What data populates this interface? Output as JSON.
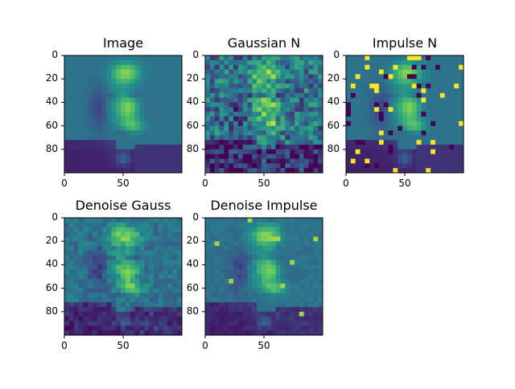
{
  "chart_data": [
    {
      "type": "heatmap",
      "title": "Image",
      "colormap": "viridis",
      "image_shape": [
        100,
        100
      ],
      "xlim": [
        0,
        100
      ],
      "ylim": [
        100,
        0
      ],
      "xticks": [
        0,
        50
      ],
      "yticks": [
        0,
        20,
        40,
        60,
        80
      ],
      "variant": "clean"
    },
    {
      "type": "heatmap",
      "title": "Gaussian N",
      "colormap": "viridis",
      "image_shape": [
        100,
        100
      ],
      "xlim": [
        0,
        100
      ],
      "ylim": [
        100,
        0
      ],
      "xticks": [
        0,
        50
      ],
      "yticks": [
        0,
        20,
        40,
        60,
        80
      ],
      "variant": "gaussian-noise"
    },
    {
      "type": "heatmap",
      "title": "Impulse N",
      "colormap": "viridis",
      "image_shape": [
        100,
        100
      ],
      "xlim": [
        0,
        100
      ],
      "ylim": [
        100,
        0
      ],
      "xticks": [
        0,
        50
      ],
      "yticks": [
        0,
        20,
        40,
        60,
        80
      ],
      "variant": "impulse-noise"
    },
    {
      "type": "heatmap",
      "title": "Denoise Gauss",
      "colormap": "viridis",
      "image_shape": [
        100,
        100
      ],
      "xlim": [
        0,
        100
      ],
      "ylim": [
        100,
        0
      ],
      "xticks": [
        0,
        50
      ],
      "yticks": [
        0,
        20,
        40,
        60,
        80
      ],
      "variant": "denoised-gaussian"
    },
    {
      "type": "heatmap",
      "title": "Denoise Impulse",
      "colormap": "viridis",
      "image_shape": [
        100,
        100
      ],
      "xlim": [
        0,
        100
      ],
      "ylim": [
        100,
        0
      ],
      "xticks": [
        0,
        50
      ],
      "yticks": [
        0,
        20,
        40,
        60,
        80
      ],
      "variant": "denoised-impulse"
    }
  ]
}
